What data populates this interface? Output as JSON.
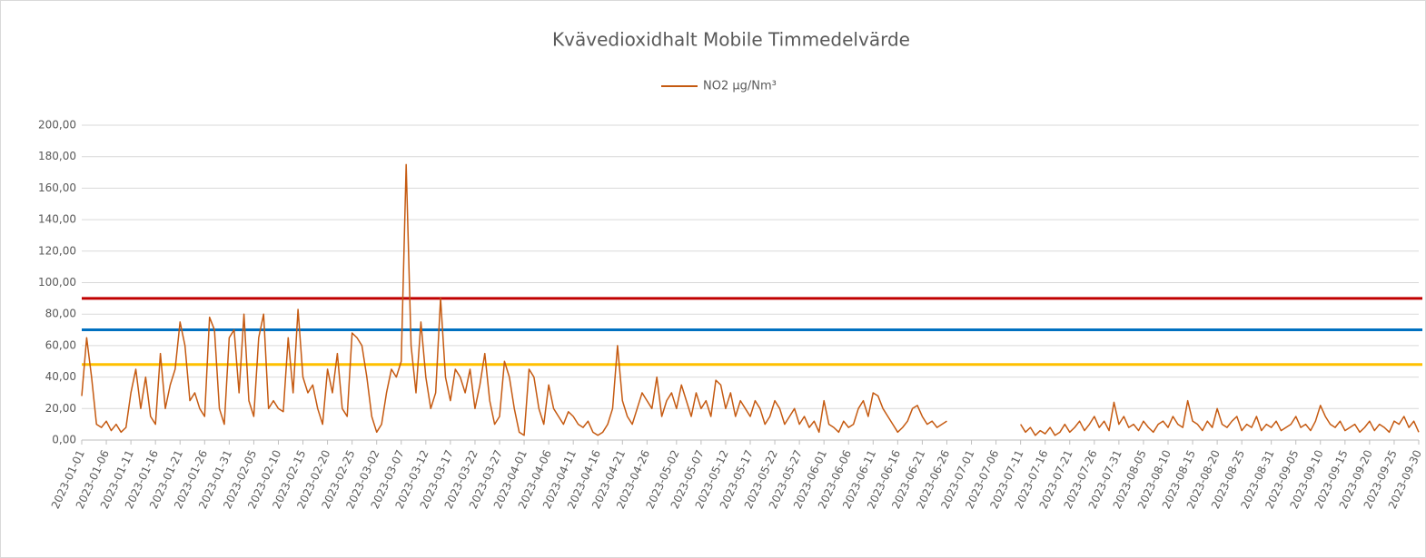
{
  "chart_data": {
    "type": "line",
    "title": "Kvävedioxidhalt Mobile Timmedelvärde",
    "series": [
      {
        "name": "NO2 µg/Nm³",
        "color": "#c55a11",
        "x": [
          "2023-01-01",
          "2023-01-02",
          "2023-01-03",
          "2023-01-04",
          "2023-01-05",
          "2023-01-06",
          "2023-01-07",
          "2023-01-08",
          "2023-01-09",
          "2023-01-10",
          "2023-01-11",
          "2023-01-12",
          "2023-01-13",
          "2023-01-14",
          "2023-01-15",
          "2023-01-16",
          "2023-01-17",
          "2023-01-18",
          "2023-01-19",
          "2023-01-20",
          "2023-01-21",
          "2023-01-22",
          "2023-01-23",
          "2023-01-24",
          "2023-01-25",
          "2023-01-26",
          "2023-01-27",
          "2023-01-28",
          "2023-01-29",
          "2023-01-30",
          "2023-01-31",
          "2023-02-01",
          "2023-02-02",
          "2023-02-03",
          "2023-02-04",
          "2023-02-05",
          "2023-02-06",
          "2023-02-07",
          "2023-02-08",
          "2023-02-09",
          "2023-02-10",
          "2023-02-11",
          "2023-02-12",
          "2023-02-13",
          "2023-02-14",
          "2023-02-15",
          "2023-02-16",
          "2023-02-17",
          "2023-02-18",
          "2023-02-19",
          "2023-02-20",
          "2023-02-21",
          "2023-02-22",
          "2023-02-23",
          "2023-02-24",
          "2023-02-25",
          "2023-02-26",
          "2023-02-27",
          "2023-02-28",
          "2023-03-01",
          "2023-03-02",
          "2023-03-03",
          "2023-03-04",
          "2023-03-05",
          "2023-03-06",
          "2023-03-07",
          "2023-03-08",
          "2023-03-09",
          "2023-03-10",
          "2023-03-11",
          "2023-03-12",
          "2023-03-13",
          "2023-03-14",
          "2023-03-15",
          "2023-03-16",
          "2023-03-17",
          "2023-03-18",
          "2023-03-19",
          "2023-03-20",
          "2023-03-21",
          "2023-03-22",
          "2023-03-23",
          "2023-03-24",
          "2023-03-25",
          "2023-03-26",
          "2023-03-27",
          "2023-03-28",
          "2023-03-29",
          "2023-03-30",
          "2023-03-31",
          "2023-04-01",
          "2023-04-02",
          "2023-04-03",
          "2023-04-04",
          "2023-04-05",
          "2023-04-06",
          "2023-04-07",
          "2023-04-08",
          "2023-04-09",
          "2023-04-10",
          "2023-04-11",
          "2023-04-12",
          "2023-04-13",
          "2023-04-14",
          "2023-04-15",
          "2023-04-16",
          "2023-04-17",
          "2023-04-18",
          "2023-04-19",
          "2023-04-20",
          "2023-04-21",
          "2023-04-22",
          "2023-04-23",
          "2023-04-24",
          "2023-04-25",
          "2023-04-26",
          "2023-04-27",
          "2023-04-28",
          "2023-04-29",
          "2023-04-30",
          "2023-05-01",
          "2023-05-02",
          "2023-05-03",
          "2023-05-04",
          "2023-05-05",
          "2023-05-06",
          "2023-05-07",
          "2023-05-08",
          "2023-05-09",
          "2023-05-10",
          "2023-05-11",
          "2023-05-12",
          "2023-05-13",
          "2023-05-14",
          "2023-05-15",
          "2023-05-16",
          "2023-05-17",
          "2023-05-18",
          "2023-05-19",
          "2023-05-20",
          "2023-05-21",
          "2023-05-22",
          "2023-05-23",
          "2023-05-24",
          "2023-05-25",
          "2023-05-26",
          "2023-05-27",
          "2023-05-28",
          "2023-05-29",
          "2023-05-30",
          "2023-05-31",
          "2023-06-01",
          "2023-06-02",
          "2023-06-03",
          "2023-06-04",
          "2023-06-05",
          "2023-06-06",
          "2023-06-07",
          "2023-06-08",
          "2023-06-09",
          "2023-06-10",
          "2023-06-11",
          "2023-06-12",
          "2023-06-13",
          "2023-06-14",
          "2023-06-15",
          "2023-06-16",
          "2023-06-17",
          "2023-06-18",
          "2023-06-19",
          "2023-06-20",
          "2023-06-21",
          "2023-06-22",
          "2023-06-23",
          "2023-06-24",
          "2023-06-25",
          "2023-06-26",
          "2023-06-27",
          "2023-06-28",
          "2023-06-29",
          "2023-06-30",
          "2023-07-01",
          "2023-07-02",
          "2023-07-03",
          "2023-07-04",
          "2023-07-05",
          "2023-07-06",
          "2023-07-07",
          "2023-07-08",
          "2023-07-09",
          "2023-07-10",
          "2023-07-11",
          "2023-07-12",
          "2023-07-13",
          "2023-07-14",
          "2023-07-15",
          "2023-07-16",
          "2023-07-17",
          "2023-07-18",
          "2023-07-19",
          "2023-07-20",
          "2023-07-21",
          "2023-07-22",
          "2023-07-23",
          "2023-07-24",
          "2023-07-25",
          "2023-07-26",
          "2023-07-27",
          "2023-07-28",
          "2023-07-29",
          "2023-07-30",
          "2023-07-31",
          "2023-08-01",
          "2023-08-02",
          "2023-08-03",
          "2023-08-04",
          "2023-08-05",
          "2023-08-06",
          "2023-08-07",
          "2023-08-08",
          "2023-08-09",
          "2023-08-10",
          "2023-08-11",
          "2023-08-12",
          "2023-08-13",
          "2023-08-14",
          "2023-08-15",
          "2023-08-16",
          "2023-08-17",
          "2023-08-18",
          "2023-08-19",
          "2023-08-20",
          "2023-08-21",
          "2023-08-22",
          "2023-08-23",
          "2023-08-24",
          "2023-08-25",
          "2023-08-26",
          "2023-08-27",
          "2023-08-28",
          "2023-08-29",
          "2023-08-30",
          "2023-08-31",
          "2023-09-01",
          "2023-09-02",
          "2023-09-03",
          "2023-09-04",
          "2023-09-05",
          "2023-09-06",
          "2023-09-07",
          "2023-09-08",
          "2023-09-09",
          "2023-09-10",
          "2023-09-11",
          "2023-09-12",
          "2023-09-13",
          "2023-09-14",
          "2023-09-15",
          "2023-09-16",
          "2023-09-17",
          "2023-09-18",
          "2023-09-19",
          "2023-09-20",
          "2023-09-21",
          "2023-09-22",
          "2023-09-23",
          "2023-09-24",
          "2023-09-25",
          "2023-09-26",
          "2023-09-27",
          "2023-09-28",
          "2023-09-29",
          "2023-09-30"
        ],
        "values": [
          28,
          65,
          40,
          10,
          8,
          12,
          6,
          10,
          5,
          8,
          30,
          45,
          20,
          40,
          15,
          10,
          55,
          20,
          35,
          45,
          75,
          60,
          25,
          30,
          20,
          15,
          78,
          70,
          20,
          10,
          65,
          70,
          30,
          80,
          25,
          15,
          65,
          80,
          20,
          25,
          20,
          18,
          65,
          30,
          83,
          40,
          30,
          35,
          20,
          10,
          45,
          30,
          55,
          20,
          15,
          68,
          65,
          60,
          40,
          15,
          5,
          10,
          30,
          45,
          40,
          50,
          175,
          60,
          30,
          75,
          40,
          20,
          30,
          90,
          40,
          25,
          45,
          40,
          30,
          45,
          20,
          35,
          55,
          25,
          10,
          15,
          50,
          40,
          20,
          5,
          3,
          45,
          40,
          20,
          10,
          35,
          20,
          15,
          10,
          18,
          15,
          10,
          8,
          12,
          5,
          3,
          5,
          10,
          20,
          60,
          25,
          15,
          10,
          20,
          30,
          25,
          20,
          40,
          15,
          25,
          30,
          20,
          35,
          25,
          15,
          30,
          20,
          25,
          15,
          38,
          35,
          20,
          30,
          15,
          25,
          20,
          15,
          25,
          20,
          10,
          15,
          25,
          20,
          10,
          15,
          20,
          10,
          15,
          8,
          12,
          5,
          25,
          10,
          8,
          5,
          12,
          8,
          10,
          20,
          25,
          15,
          30,
          28,
          20,
          15,
          10,
          5,
          8,
          12,
          20,
          22,
          15,
          10,
          12,
          8,
          10,
          12,
          null,
          null,
          null,
          null,
          null,
          null,
          null,
          null,
          null,
          null,
          null,
          null,
          null,
          null,
          10,
          5,
          8,
          3,
          6,
          4,
          8,
          3,
          5,
          10,
          5,
          8,
          12,
          6,
          10,
          15,
          8,
          12,
          6,
          24,
          10,
          15,
          8,
          10,
          6,
          12,
          8,
          5,
          10,
          12,
          8,
          15,
          10,
          8,
          25,
          12,
          10,
          6,
          12,
          8,
          20,
          10,
          8,
          12,
          15,
          6,
          10,
          8,
          15,
          6,
          10,
          8,
          12,
          6,
          8,
          10,
          15,
          8,
          10,
          6,
          12,
          22,
          15,
          10,
          8,
          12,
          6,
          8,
          10,
          5,
          8,
          12,
          6,
          10,
          8,
          5,
          12,
          10,
          15,
          8,
          12,
          5
        ]
      }
    ],
    "reference_lines": [
      {
        "value": 90,
        "color": "#c00000"
      },
      {
        "value": 70,
        "color": "#0070c0"
      },
      {
        "value": 48,
        "color": "#ffc000"
      }
    ],
    "xlim": [
      "2023-01-01",
      "2023-09-30"
    ],
    "xticks": [
      "2023-01-01",
      "2023-01-06",
      "2023-01-11",
      "2023-01-16",
      "2023-01-21",
      "2023-01-26",
      "2023-01-31",
      "2023-02-05",
      "2023-02-10",
      "2023-02-15",
      "2023-02-20",
      "2023-02-25",
      "2023-03-02",
      "2023-03-07",
      "2023-03-12",
      "2023-03-17",
      "2023-03-22",
      "2023-03-27",
      "2023-04-01",
      "2023-04-06",
      "2023-04-11",
      "2023-04-16",
      "2023-04-21",
      "2023-04-26",
      "2023-05-02",
      "2023-05-07",
      "2023-05-12",
      "2023-05-17",
      "2023-05-22",
      "2023-05-27",
      "2023-06-01",
      "2023-06-06",
      "2023-06-11",
      "2023-06-16",
      "2023-06-21",
      "2023-06-26",
      "2023-07-01",
      "2023-07-06",
      "2023-07-11",
      "2023-07-16",
      "2023-07-21",
      "2023-07-26",
      "2023-07-31",
      "2023-08-05",
      "2023-08-10",
      "2023-08-15",
      "2023-08-20",
      "2023-08-25",
      "2023-08-31",
      "2023-09-05",
      "2023-09-10",
      "2023-09-15",
      "2023-09-20",
      "2023-09-25",
      "2023-09-30"
    ],
    "ylim": [
      0,
      200
    ],
    "yticks": [
      {
        "value": 0,
        "label": "0,00"
      },
      {
        "value": 20,
        "label": "20,00"
      },
      {
        "value": 40,
        "label": "40,00"
      },
      {
        "value": 60,
        "label": "60,00"
      },
      {
        "value": 80,
        "label": "80,00"
      },
      {
        "value": 100,
        "label": "100,00"
      },
      {
        "value": 120,
        "label": "120,00"
      },
      {
        "value": 140,
        "label": "140,00"
      },
      {
        "value": 160,
        "label": "160,00"
      },
      {
        "value": 180,
        "label": "180,00"
      },
      {
        "value": 200,
        "label": "200,00"
      }
    ],
    "grid": true,
    "legend": "top"
  }
}
